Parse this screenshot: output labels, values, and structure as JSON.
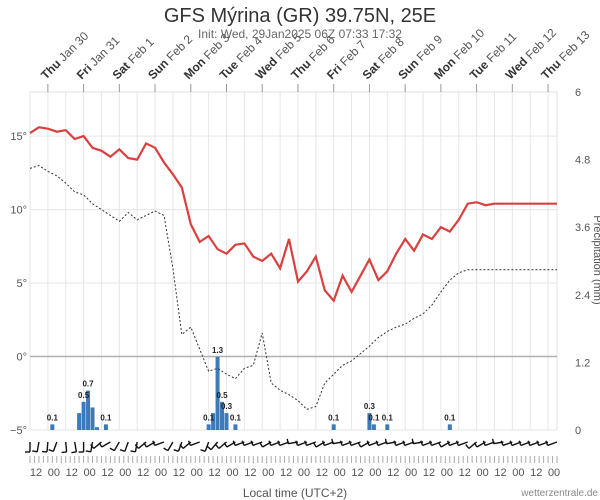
{
  "title": "GFS Mýrina (GR) 39.75N, 25E",
  "subtitle": "Init: Wed, 29Jan2025 06Z 07:33 17:32",
  "credit": "wetterzentrale.de",
  "colors": {
    "temperature": "#d94040",
    "dewpoint": "#333333",
    "precip": "#3d7ab8",
    "grid": "#e6e6e6",
    "zero": "#b0b0b0"
  },
  "chart_data": {
    "type": "line",
    "title": "GFS Mýrina (GR) 39.75N, 25E",
    "xlabel": "Local time (UTC+2)",
    "ylabel_right": "Precipitation (mm)",
    "ylim_left": [
      -5,
      18
    ],
    "ylim_right": [
      0,
      6
    ],
    "y_ticks_left": [
      "15°",
      "10°",
      "5°",
      "0°",
      "−5°"
    ],
    "y_ticks_right": [
      "6",
      "4.8",
      "3.6",
      "2.4",
      "1.2",
      "0"
    ],
    "days": [
      {
        "name": "Thu",
        "date": "Jan 30"
      },
      {
        "name": "Fri",
        "date": "Jan 31"
      },
      {
        "name": "Sat",
        "date": "Feb 1"
      },
      {
        "name": "Sun",
        "date": "Feb 2"
      },
      {
        "name": "Mon",
        "date": "Feb 3"
      },
      {
        "name": "Tue",
        "date": "Feb 4"
      },
      {
        "name": "Wed",
        "date": "Feb 5"
      },
      {
        "name": "Thu",
        "date": "Feb 6"
      },
      {
        "name": "Fri",
        "date": "Feb 7"
      },
      {
        "name": "Sat",
        "date": "Feb 8"
      },
      {
        "name": "Sun",
        "date": "Feb 9"
      },
      {
        "name": "Mon",
        "date": "Feb 10"
      },
      {
        "name": "Tue",
        "date": "Feb 11"
      },
      {
        "name": "Wed",
        "date": "Feb 12"
      },
      {
        "name": "Thu",
        "date": "Feb 13"
      }
    ],
    "hour_ticks": [
      "12",
      "00",
      "12",
      "00",
      "12",
      "00",
      "12",
      "00",
      "12",
      "00",
      "12",
      "00",
      "12",
      "00",
      "12",
      "00",
      "12",
      "00",
      "12",
      "00",
      "12",
      "00",
      "12",
      "00",
      "12",
      "00",
      "12",
      "00",
      "12",
      "00"
    ],
    "x_range_hours": [
      0,
      354
    ],
    "series": [
      {
        "name": "Temperature (°C)",
        "x_hours": [
          0,
          6,
          12,
          18,
          24,
          30,
          36,
          42,
          48,
          54,
          60,
          66,
          72,
          78,
          84,
          90,
          96,
          102,
          108,
          114,
          120,
          126,
          132,
          138,
          144,
          150,
          156,
          162,
          168,
          174,
          180,
          186,
          192,
          198,
          204,
          210,
          216,
          222,
          228,
          234,
          240,
          246,
          252,
          258,
          264,
          270,
          276,
          282,
          288,
          294,
          300,
          306,
          312,
          318,
          324,
          330,
          336,
          342,
          348,
          354
        ],
        "values": [
          15.2,
          15.6,
          15.5,
          15.3,
          15.4,
          14.8,
          15.0,
          14.2,
          14.0,
          13.6,
          14.1,
          13.5,
          13.4,
          14.5,
          14.2,
          13.2,
          12.4,
          11.5,
          9.0,
          7.8,
          8.2,
          7.3,
          7.0,
          7.6,
          7.7,
          6.8,
          6.5,
          7.0,
          6.0,
          8.0,
          5.1,
          5.8,
          6.8,
          4.5,
          3.8,
          5.5,
          4.4,
          5.5,
          6.6,
          5.2,
          5.8,
          7.0,
          8.0,
          7.2,
          8.3,
          8.0,
          8.8,
          8.5,
          9.3,
          10.4,
          10.5,
          10.3,
          10.4,
          10.4,
          10.4,
          10.4,
          10.4,
          10.4,
          10.4,
          10.4
        ]
      },
      {
        "name": "Dewpoint (°C)",
        "x_hours": [
          0,
          6,
          12,
          18,
          24,
          30,
          36,
          42,
          48,
          54,
          60,
          66,
          72,
          78,
          84,
          90,
          96,
          102,
          108,
          114,
          120,
          126,
          132,
          138,
          144,
          150,
          156,
          162,
          168,
          174,
          180,
          186,
          192,
          198,
          204,
          210,
          216,
          222,
          228,
          234,
          240,
          246,
          252,
          258,
          264,
          270,
          276,
          282,
          288,
          294,
          300,
          306,
          312,
          318,
          324,
          330,
          336,
          342,
          348,
          354
        ],
        "values": [
          12.8,
          13.0,
          12.6,
          12.3,
          11.8,
          11.2,
          11.0,
          10.4,
          10.0,
          9.6,
          9.2,
          9.8,
          9.3,
          9.6,
          9.9,
          9.6,
          6.0,
          1.5,
          2.0,
          0.5,
          -1.0,
          -0.8,
          -1.2,
          -1.5,
          -0.8,
          -0.6,
          1.6,
          -1.8,
          -2.3,
          -2.6,
          -3.0,
          -3.6,
          -3.4,
          -1.8,
          -1.2,
          -0.6,
          -0.3,
          0.2,
          0.7,
          1.3,
          1.7,
          2.0,
          2.2,
          2.6,
          2.9,
          3.5,
          4.4,
          5.2,
          5.7,
          5.9,
          5.9,
          5.9,
          5.9,
          5.9,
          5.9,
          5.9,
          5.9,
          5.9,
          5.9,
          5.9
        ]
      }
    ],
    "precip": {
      "name": "Precipitation (mm)",
      "x_hours": [
        15,
        33,
        36,
        39,
        42,
        45,
        51,
        120,
        123,
        126,
        129,
        132,
        138,
        204,
        228,
        231,
        240,
        282
      ],
      "values": [
        0.1,
        0.3,
        0.5,
        0.7,
        0.4,
        0.05,
        0.1,
        0.1,
        0.3,
        1.3,
        0.5,
        0.3,
        0.1,
        0.1,
        0.3,
        0.1,
        0.1,
        0.1
      ]
    },
    "precip_labels": [
      {
        "x_hour": 15,
        "text": "0.1"
      },
      {
        "x_hour": 36,
        "text": "0.5"
      },
      {
        "x_hour": 39,
        "text": "0.7"
      },
      {
        "x_hour": 51,
        "text": "0.1"
      },
      {
        "x_hour": 120,
        "text": "0.1"
      },
      {
        "x_hour": 126,
        "text": "1.3"
      },
      {
        "x_hour": 129,
        "text": "0.5"
      },
      {
        "x_hour": 132,
        "text": "0.3"
      },
      {
        "x_hour": 138,
        "text": "0.1"
      },
      {
        "x_hour": 204,
        "text": "0.1"
      },
      {
        "x_hour": 228,
        "text": "0.3"
      },
      {
        "x_hour": 231,
        "text": "0.1"
      },
      {
        "x_hour": 240,
        "text": "0.1"
      },
      {
        "x_hour": 282,
        "text": "0.1"
      }
    ],
    "wind_barbs": {
      "x_hours": [
        0,
        6,
        12,
        18,
        24,
        30,
        36,
        42,
        48,
        54,
        60,
        66,
        72,
        78,
        84,
        90,
        96,
        102,
        108,
        114,
        120,
        126,
        132,
        138,
        144,
        150,
        156,
        162,
        168,
        174,
        180,
        186,
        192,
        198,
        204,
        210,
        216,
        222,
        228,
        234,
        240,
        246,
        252,
        258,
        264,
        270,
        276,
        282,
        288,
        294,
        300,
        306,
        312,
        318,
        324,
        330,
        336,
        342,
        348,
        354
      ],
      "dir_deg": [
        180,
        190,
        185,
        200,
        175,
        170,
        180,
        190,
        230,
        240,
        210,
        200,
        190,
        230,
        240,
        250,
        210,
        200,
        230,
        250,
        200,
        220,
        230,
        240,
        250,
        250,
        250,
        240,
        250,
        250,
        260,
        250,
        250,
        240,
        250,
        260,
        250,
        250,
        240,
        250,
        250,
        260,
        250,
        250,
        260,
        250,
        250,
        240,
        250,
        250,
        230,
        240,
        250,
        260,
        250,
        250,
        250,
        250,
        250,
        250
      ]
    }
  }
}
